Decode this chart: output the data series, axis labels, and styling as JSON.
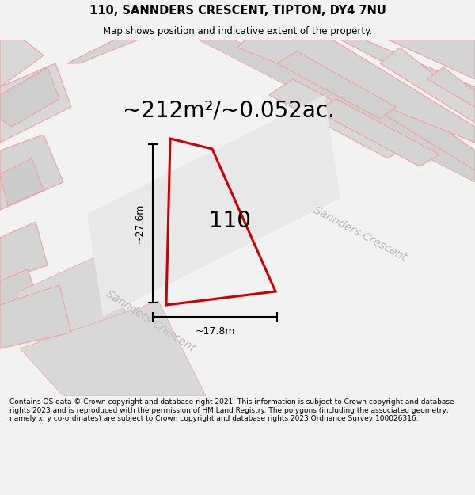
{
  "title": "110, SANNDERS CRESCENT, TIPTON, DY4 7NU",
  "subtitle": "Map shows position and indicative extent of the property.",
  "area_text": "~212m²/~0.052ac.",
  "label_110": "110",
  "dim_width": "~17.8m",
  "dim_height": "~27.6m",
  "road_label_1": "Sannders Crescent",
  "road_label_2": "Sannders Crescent",
  "footer": "Contains OS data © Crown copyright and database right 2021. This information is subject to Crown copyright and database rights 2023 and is reproduced with the permission of HM Land Registry. The polygons (including the associated geometry, namely x, y co-ordinates) are subject to Crown copyright and database rights 2023 Ordnance Survey 100026316.",
  "bg_color": "#f2f2f2",
  "map_bg": "#ececec",
  "plot_color": "#cc0000",
  "road_fill": "#d8d8d8",
  "road_line_color": "#f0a0a0",
  "title_fontsize": 10.5,
  "subtitle_fontsize": 8.5,
  "area_fontsize": 20,
  "label_fontsize": 20,
  "dim_fontsize": 9,
  "road_fontsize": 10,
  "footer_fontsize": 6.5
}
